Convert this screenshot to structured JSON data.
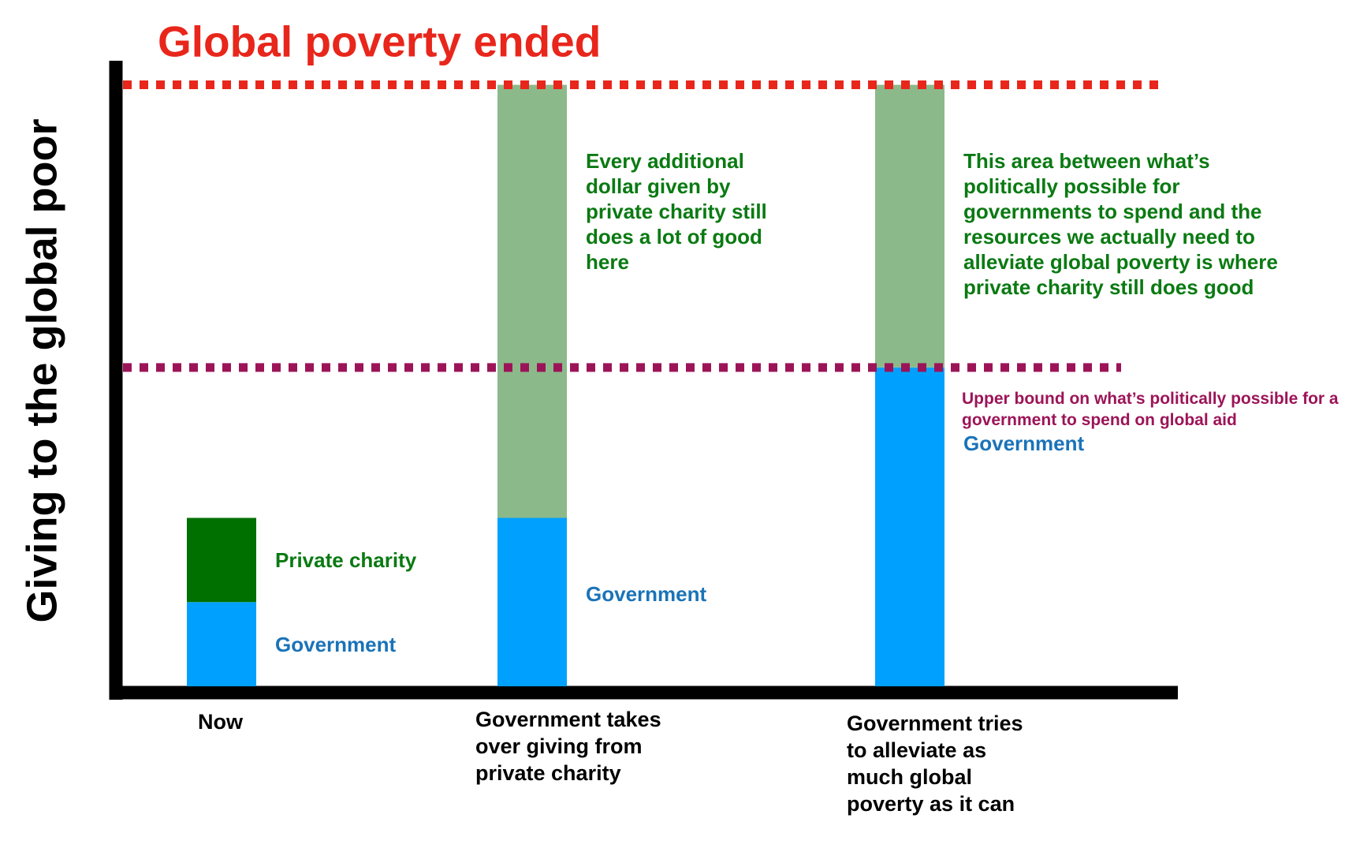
{
  "chart_data": {
    "type": "bar",
    "stacked": true,
    "title": "Global poverty ended",
    "title_color": "#e8261b",
    "ylabel": "Giving to the global poor",
    "categories": [
      "Now",
      "Government takes over giving from private charity",
      "Government tries to alleviate as much global poverty as it can"
    ],
    "ylim": [
      0,
      104
    ],
    "series": [
      {
        "name": "Government",
        "color": "#00a0ff",
        "label_color": "#1a73b8",
        "values": [
          14,
          28,
          53
        ],
        "labels": [
          "Government",
          "Government",
          "Government"
        ]
      },
      {
        "name": "Private charity",
        "color": "#007000",
        "colors": [
          "#007000",
          "#8cb98a",
          "#8cb98a"
        ],
        "label_color": "#0a7a12",
        "values": [
          14,
          72,
          47
        ],
        "labels": [
          "Private charity",
          "Every additional dollar given by private charity still does a lot of good here",
          "This area between what’s politically possible for governments to spend and the resources we actually need to alleviate global poverty is where private charity still does good"
        ]
      }
    ],
    "reference_lines": [
      {
        "value": 100,
        "color": "#e8261b"
      },
      {
        "value": 53,
        "color": "#9c1458",
        "label": "Upper bound on what’s politically possible for a government to spend on global aid"
      }
    ]
  }
}
